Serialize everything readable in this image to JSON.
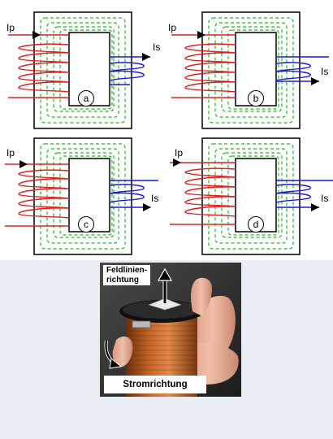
{
  "panels": [
    {
      "badge": "a",
      "primary_label": "Ip",
      "secondary_label": "Is"
    },
    {
      "badge": "b",
      "primary_label": "Ip",
      "secondary_label": "Is"
    },
    {
      "badge": "c",
      "primary_label": "Ip",
      "secondary_label": "Is"
    },
    {
      "badge": "d",
      "primary_label": "Ip",
      "secondary_label": "Is"
    }
  ],
  "photo": {
    "top_caption": [
      "Feldlinien-",
      "richtung"
    ],
    "bottom_caption": "Stromrichtung"
  },
  "colors": {
    "core": "#000000",
    "primary_coil": "#e02020",
    "secondary_coil": "#1a1ae0",
    "field_lines": "#22bb22",
    "copper": "#b35a1e",
    "background": "#e8eef4"
  }
}
